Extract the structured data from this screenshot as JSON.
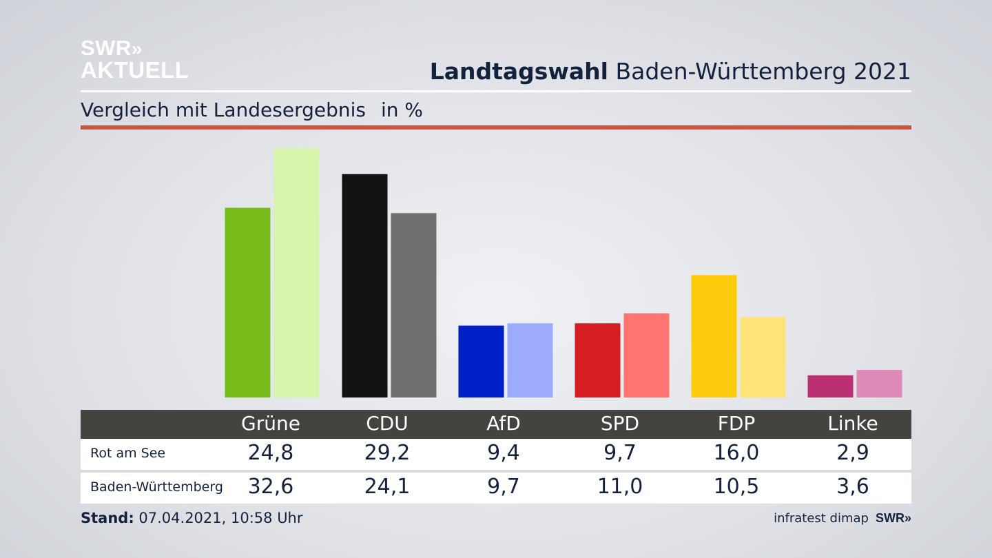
{
  "brand": {
    "logo_line1": "SWR",
    "logo_chevrons": "»",
    "logo_line2": "AKTUELL"
  },
  "header": {
    "title_bold": "Landtagswahl",
    "title_rest": "Baden-Württemberg 2021",
    "subtitle": "Vergleich mit Landesergebnis",
    "unit": "in %"
  },
  "colors": {
    "accent_red": "#c9563f",
    "table_header": "#444340"
  },
  "chart_data": {
    "type": "bar",
    "categories": [
      "Grüne",
      "CDU",
      "AfD",
      "SPD",
      "FDP",
      "Linke"
    ],
    "series": [
      {
        "name": "Rot am See",
        "values": [
          24.8,
          29.2,
          9.4,
          9.7,
          16.0,
          2.9
        ],
        "value_labels": [
          "24,8",
          "29,2",
          "9,4",
          "9,7",
          "16,0",
          "2,9"
        ],
        "colors": [
          "#78bc1c",
          "#121212",
          "#001ec6",
          "#d41e22",
          "#ffcc0d",
          "#bb2f73"
        ]
      },
      {
        "name": "Baden-Württemberg",
        "values": [
          32.6,
          24.1,
          9.7,
          11.0,
          10.5,
          3.6
        ],
        "value_labels": [
          "32,6",
          "24,1",
          "9,7",
          "11,0",
          "10,5",
          "3,6"
        ],
        "colors": [
          "#d6f5aa",
          "#706f6d",
          "#9eaafc",
          "#fd7470",
          "#ffe377",
          "#de8ab8"
        ]
      }
    ],
    "ylim": [
      0,
      32.6
    ],
    "grid": false,
    "legend": "table-below"
  },
  "footer": {
    "stand_label": "Stand:",
    "stand_value": "07.04.2021, 10:58 Uhr",
    "source": "infratest dimap",
    "source_brand": "SWR»"
  }
}
